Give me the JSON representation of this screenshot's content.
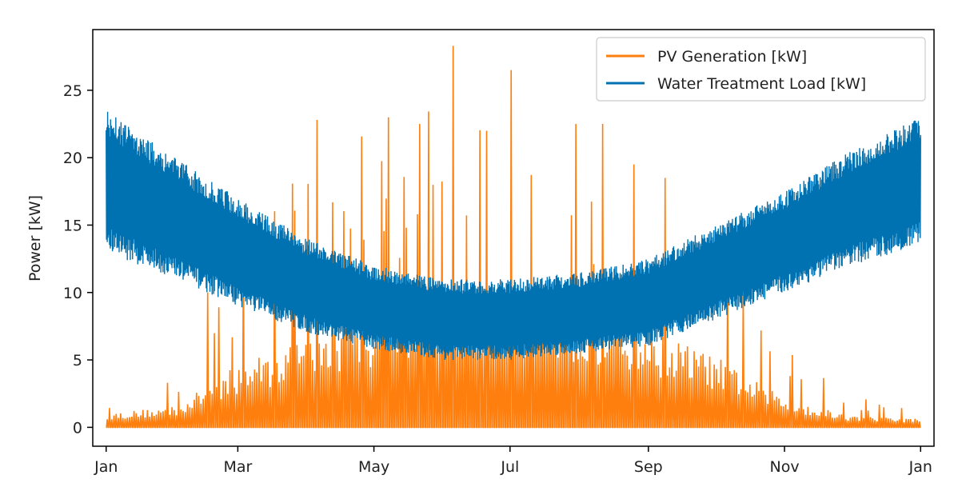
{
  "chart_data": {
    "type": "line",
    "title": "",
    "xlabel": "",
    "ylabel": "Power [kW]",
    "ylim": [
      -1.4,
      29.5
    ],
    "yticks": [
      0,
      5,
      10,
      15,
      20,
      25
    ],
    "xlim_days": [
      -6,
      371
    ],
    "xticks": [
      {
        "label": "Jan",
        "day": 0
      },
      {
        "label": "Mar",
        "day": 59
      },
      {
        "label": "May",
        "day": 120
      },
      {
        "label": "Jul",
        "day": 181
      },
      {
        "label": "Sep",
        "day": 243
      },
      {
        "label": "Nov",
        "day": 304
      },
      {
        "label": "Jan",
        "day": 365
      }
    ],
    "grid": false,
    "legend_position": "top-right",
    "series": [
      {
        "name": "PV Generation [kW]",
        "color": "#ff7f0e",
        "kind": "hourly-solar",
        "daily_peak_envelope": {
          "days": [
            0,
            31,
            59,
            90,
            120,
            151,
            181,
            212,
            243,
            273,
            304,
            334,
            365
          ],
          "kw": [
            1.0,
            1.5,
            4.5,
            6.5,
            8.0,
            9.5,
            9.5,
            8.5,
            7.0,
            5.0,
            2.0,
            0.8,
            0.6
          ]
        },
        "spikes": [
          {
            "day": 45,
            "kw": 10.0
          },
          {
            "day": 94,
            "kw": 22.8
          },
          {
            "day": 126,
            "kw": 23.0
          },
          {
            "day": 140,
            "kw": 22.5
          },
          {
            "day": 155,
            "kw": 28.3
          },
          {
            "day": 170,
            "kw": 22.0
          },
          {
            "day": 181,
            "kw": 26.5
          },
          {
            "day": 210,
            "kw": 22.5
          },
          {
            "day": 222,
            "kw": 22.5
          },
          {
            "day": 236,
            "kw": 19.5
          },
          {
            "day": 250,
            "kw": 18.5
          }
        ],
        "values_kw": {
          "min": 0,
          "max": 28.3
        }
      },
      {
        "name": "Water Treatment Load [kW]",
        "color": "#0072b2",
        "kind": "hourly-load",
        "daily_band_envelope": {
          "days": [
            0,
            31,
            59,
            90,
            120,
            151,
            181,
            212,
            243,
            273,
            304,
            334,
            365
          ],
          "low_kw": [
            13.0,
            11.0,
            9.0,
            7.0,
            5.8,
            5.0,
            5.0,
            5.5,
            6.0,
            8.0,
            10.0,
            12.0,
            13.5
          ],
          "high_kw": [
            23.5,
            20.0,
            17.0,
            14.0,
            12.0,
            11.0,
            11.0,
            11.5,
            12.5,
            15.0,
            17.5,
            20.5,
            23.0
          ]
        },
        "values_kw": {
          "min": 4.8,
          "max": 23.6
        }
      }
    ]
  }
}
